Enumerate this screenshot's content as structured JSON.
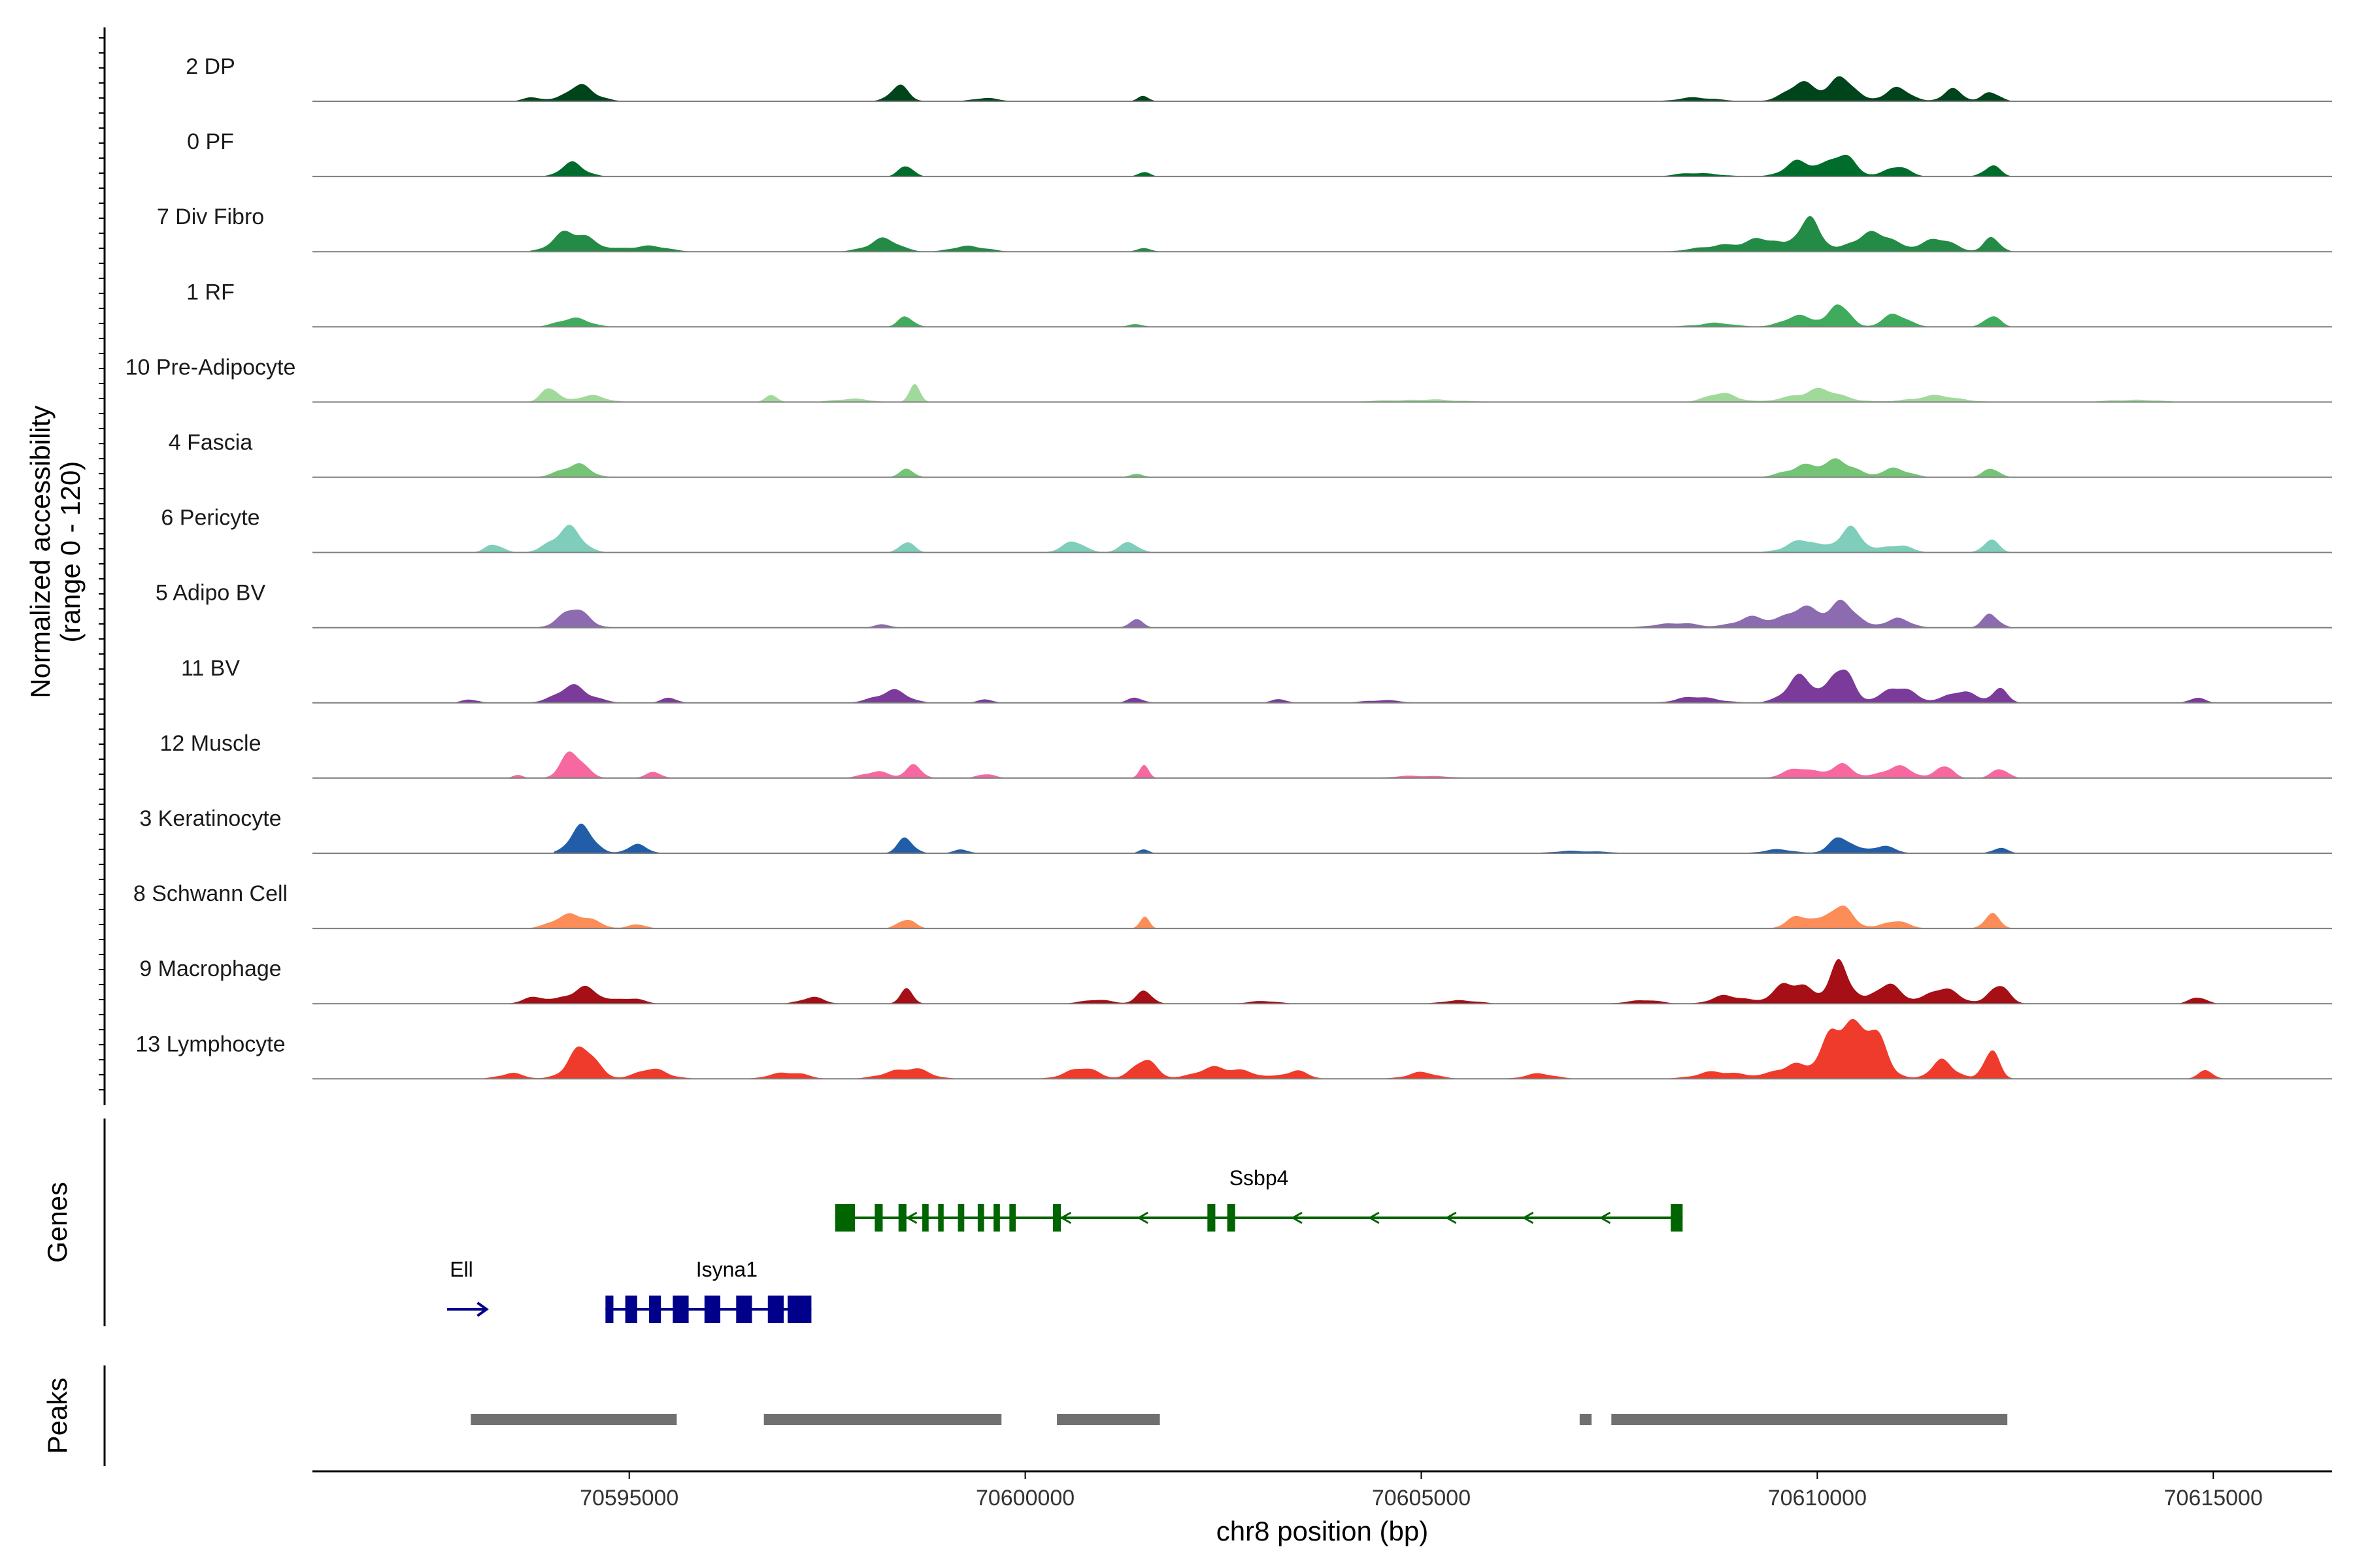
{
  "chart_data": {
    "type": "area",
    "title": "",
    "ylabel_line1": "Normalized accessibility",
    "ylabel_line2": "(range 0 - 120)",
    "ylim": [
      0,
      120
    ],
    "xlabel": "chr8 position (bp)",
    "xlim": [
      70591000,
      70616500
    ],
    "xticks": [
      {
        "value": 70595000,
        "label": "70595000"
      },
      {
        "value": 70600000,
        "label": "70600000"
      },
      {
        "value": 70605000,
        "label": "70605000"
      },
      {
        "value": 70610000,
        "label": "70610000"
      },
      {
        "value": 70615000,
        "label": "70615000"
      }
    ],
    "tracks": [
      {
        "name": "2 DP",
        "color": "#00441b",
        "peaks": [
          [
            70593800,
            7,
            120
          ],
          [
            70594400,
            26,
            180
          ],
          [
            70598400,
            24,
            120
          ],
          [
            70599500,
            6,
            150
          ],
          [
            70601500,
            9,
            70
          ],
          [
            70609800,
            28,
            200
          ],
          [
            70610300,
            38,
            160
          ],
          [
            70611000,
            22,
            160
          ],
          [
            70611700,
            20,
            120
          ],
          [
            70612200,
            18,
            100
          ],
          [
            70608500,
            6,
            250
          ]
        ]
      },
      {
        "name": "0 PF",
        "color": "#006d2c",
        "peaks": [
          [
            70594300,
            22,
            150
          ],
          [
            70598500,
            18,
            90
          ],
          [
            70601500,
            9,
            70
          ],
          [
            70609800,
            24,
            200
          ],
          [
            70610300,
            34,
            170
          ],
          [
            70611000,
            16,
            150
          ],
          [
            70612200,
            20,
            100
          ],
          [
            70608500,
            6,
            250
          ]
        ]
      },
      {
        "name": "7 Div Fibro",
        "color": "#238b45",
        "peaks": [
          [
            70594300,
            36,
            220
          ],
          [
            70595200,
            10,
            250
          ],
          [
            70598200,
            20,
            200
          ],
          [
            70599300,
            10,
            200
          ],
          [
            70601500,
            6,
            90
          ],
          [
            70609300,
            24,
            200
          ],
          [
            70609900,
            60,
            140
          ],
          [
            70610700,
            35,
            220
          ],
          [
            70611500,
            22,
            200
          ],
          [
            70612200,
            24,
            100
          ],
          [
            70608700,
            10,
            250
          ]
        ]
      },
      {
        "name": "1 RF",
        "color": "#41ab5d",
        "peaks": [
          [
            70594300,
            16,
            180
          ],
          [
            70598500,
            20,
            90
          ],
          [
            70601400,
            5,
            90
          ],
          [
            70609800,
            20,
            200
          ],
          [
            70610300,
            36,
            120
          ],
          [
            70611000,
            20,
            160
          ],
          [
            70612200,
            18,
            100
          ],
          [
            70608700,
            6,
            250
          ]
        ]
      },
      {
        "name": "10 Pre-Adipocyte",
        "color": "#a1d99b",
        "peaks": [
          [
            70594000,
            24,
            100
          ],
          [
            70594500,
            10,
            200
          ],
          [
            70596800,
            10,
            80
          ],
          [
            70598600,
            28,
            70
          ],
          [
            70597800,
            6,
            200
          ],
          [
            70610000,
            20,
            300
          ],
          [
            70608800,
            14,
            200
          ],
          [
            70611500,
            10,
            300
          ],
          [
            70605000,
            4,
            500
          ],
          [
            70614000,
            4,
            300
          ]
        ]
      },
      {
        "name": "4 Fascia",
        "color": "#74c476",
        "peaks": [
          [
            70594300,
            22,
            180
          ],
          [
            70598500,
            14,
            90
          ],
          [
            70601400,
            5,
            90
          ],
          [
            70609800,
            20,
            200
          ],
          [
            70610300,
            30,
            170
          ],
          [
            70611000,
            16,
            160
          ],
          [
            70612200,
            14,
            100
          ]
        ]
      },
      {
        "name": "6 Pericyte",
        "color": "#7fcdbb",
        "peaks": [
          [
            70593300,
            16,
            100
          ],
          [
            70594200,
            42,
            180
          ],
          [
            70598500,
            18,
            90
          ],
          [
            70600600,
            18,
            140
          ],
          [
            70601300,
            16,
            120
          ],
          [
            70609800,
            20,
            200
          ],
          [
            70610400,
            42,
            150
          ],
          [
            70611000,
            14,
            160
          ],
          [
            70612200,
            20,
            100
          ]
        ]
      },
      {
        "name": "5 Adipo BV",
        "color": "#8c6bb1",
        "peaks": [
          [
            70594300,
            30,
            180
          ],
          [
            70598200,
            6,
            100
          ],
          [
            70601400,
            12,
            90
          ],
          [
            70609200,
            16,
            250
          ],
          [
            70609800,
            30,
            200
          ],
          [
            70610300,
            44,
            170
          ],
          [
            70611000,
            16,
            160
          ],
          [
            70612200,
            24,
            100
          ],
          [
            70608200,
            8,
            250
          ]
        ]
      },
      {
        "name": "11 BV",
        "color": "#7a3b9a",
        "peaks": [
          [
            70593000,
            6,
            100
          ],
          [
            70594300,
            26,
            220
          ],
          [
            70595500,
            8,
            100
          ],
          [
            70598300,
            20,
            200
          ],
          [
            70599500,
            6,
            100
          ],
          [
            70601400,
            8,
            100
          ],
          [
            70603200,
            6,
            100
          ],
          [
            70604500,
            5,
            200
          ],
          [
            70608500,
            10,
            250
          ],
          [
            70609800,
            40,
            200
          ],
          [
            70610300,
            60,
            130
          ],
          [
            70611000,
            26,
            200
          ],
          [
            70611800,
            18,
            200
          ],
          [
            70612300,
            24,
            100
          ],
          [
            70614800,
            8,
            100
          ]
        ]
      },
      {
        "name": "12 Muscle",
        "color": "#f768a1",
        "peaks": [
          [
            70593600,
            6,
            60
          ],
          [
            70594300,
            44,
            140
          ],
          [
            70595300,
            10,
            100
          ],
          [
            70598100,
            12,
            150
          ],
          [
            70598600,
            22,
            100
          ],
          [
            70599500,
            8,
            100
          ],
          [
            70601500,
            22,
            60
          ],
          [
            70609800,
            16,
            200
          ],
          [
            70610300,
            20,
            150
          ],
          [
            70611000,
            18,
            200
          ],
          [
            70611600,
            22,
            100
          ],
          [
            70612300,
            16,
            100
          ],
          [
            70605000,
            4,
            300
          ]
        ]
      },
      {
        "name": "3 Keratinocyte",
        "color": "#225ea8",
        "peaks": [
          [
            70594400,
            50,
            140
          ],
          [
            70595100,
            16,
            120
          ],
          [
            70598500,
            26,
            100
          ],
          [
            70599200,
            6,
            100
          ],
          [
            70601500,
            8,
            60
          ],
          [
            70610300,
            24,
            150
          ],
          [
            70610800,
            12,
            160
          ],
          [
            70612300,
            8,
            100
          ],
          [
            70609500,
            6,
            200
          ],
          [
            70607000,
            4,
            300
          ]
        ]
      },
      {
        "name": "8 Schwann Cell",
        "color": "#fc8d59",
        "peaks": [
          [
            70594300,
            26,
            220
          ],
          [
            70595100,
            8,
            100
          ],
          [
            70598500,
            18,
            100
          ],
          [
            70601500,
            20,
            60
          ],
          [
            70609800,
            24,
            150
          ],
          [
            70610300,
            36,
            160
          ],
          [
            70611000,
            12,
            160
          ],
          [
            70612200,
            22,
            100
          ]
        ]
      },
      {
        "name": "9 Macrophage",
        "color": "#a50f15",
        "peaks": [
          [
            70593800,
            10,
            150
          ],
          [
            70594400,
            26,
            200
          ],
          [
            70595000,
            10,
            150
          ],
          [
            70597300,
            10,
            150
          ],
          [
            70598500,
            26,
            80
          ],
          [
            70600900,
            6,
            200
          ],
          [
            70601500,
            20,
            100
          ],
          [
            70603000,
            4,
            200
          ],
          [
            70605500,
            6,
            200
          ],
          [
            70607800,
            6,
            200
          ],
          [
            70608900,
            14,
            200
          ],
          [
            70609700,
            40,
            200
          ],
          [
            70610300,
            68,
            130
          ],
          [
            70610900,
            30,
            180
          ],
          [
            70611600,
            24,
            200
          ],
          [
            70612300,
            30,
            120
          ],
          [
            70614800,
            12,
            100
          ]
        ]
      },
      {
        "name": "13 Lymphocyte",
        "color": "#ef3b2c",
        "peaks": [
          [
            70593500,
            10,
            150
          ],
          [
            70594400,
            50,
            180
          ],
          [
            70595300,
            16,
            200
          ],
          [
            70597000,
            12,
            200
          ],
          [
            70598500,
            18,
            250
          ],
          [
            70600700,
            18,
            200
          ],
          [
            70601500,
            30,
            150
          ],
          [
            70602500,
            20,
            300
          ],
          [
            70603400,
            14,
            150
          ],
          [
            70605000,
            10,
            200
          ],
          [
            70606500,
            8,
            200
          ],
          [
            70608800,
            12,
            300
          ],
          [
            70609700,
            26,
            200
          ],
          [
            70610300,
            100,
            180
          ],
          [
            70610700,
            70,
            180
          ],
          [
            70611600,
            30,
            150
          ],
          [
            70612200,
            44,
            100
          ],
          [
            70614900,
            12,
            100
          ]
        ]
      }
    ],
    "genes_panel_label": "Genes",
    "genes": [
      {
        "name": "Ssbp4",
        "color": "#006400",
        "start": 70597600,
        "end": 70608300,
        "strand": "-",
        "exons": [
          [
            70597600,
            70597850
          ],
          [
            70598100,
            70598200
          ],
          [
            70598400,
            70598500
          ],
          [
            70598700,
            70598780
          ],
          [
            70598900,
            70598970
          ],
          [
            70599150,
            70599230
          ],
          [
            70599400,
            70599480
          ],
          [
            70599600,
            70599680
          ],
          [
            70599800,
            70599880
          ],
          [
            70600350,
            70600450
          ],
          [
            70602300,
            70602400
          ],
          [
            70602550,
            70602650
          ],
          [
            70608150,
            70608300
          ]
        ]
      },
      {
        "name": "Isyna1",
        "color": "#00008b",
        "start": 70594700,
        "end": 70597300,
        "strand": "-",
        "exons": [
          [
            70594700,
            70594800
          ],
          [
            70594950,
            70595100
          ],
          [
            70595250,
            70595400
          ],
          [
            70595550,
            70595750
          ],
          [
            70595950,
            70596150
          ],
          [
            70596350,
            70596550
          ],
          [
            70596750,
            70596950
          ],
          [
            70597000,
            70597300
          ]
        ]
      },
      {
        "name": "Ell",
        "color": "#00008b",
        "start": 70592700,
        "end": 70593100,
        "strand": "+",
        "exons": []
      }
    ],
    "peaks_panel_label": "Peaks",
    "peak_regions": [
      [
        70593000,
        70595600
      ],
      [
        70596700,
        70599700
      ],
      [
        70600400,
        70601700
      ],
      [
        70607000,
        70607150
      ],
      [
        70607400,
        70612400
      ]
    ]
  }
}
